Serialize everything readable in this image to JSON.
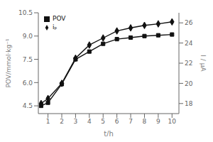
{
  "chart_data": {
    "type": "line",
    "xlabel": "t/h",
    "ylabel": "POV/mmol·kg⁻¹",
    "y2label": "I / μA",
    "x": [
      0.5,
      1,
      2,
      3,
      4,
      5,
      6,
      7,
      8,
      9,
      10
    ],
    "series": [
      {
        "name": "POV",
        "color": "#111111",
        "marker": "square",
        "values": [
          4.5,
          4.7,
          5.9,
          7.5,
          8.0,
          8.5,
          8.8,
          8.9,
          9.0,
          9.05,
          9.1
        ]
      },
      {
        "name": "iₚ",
        "color": "#111111",
        "marker": "diamond",
        "axis": "y2",
        "values": [
          18.0,
          18.5,
          20.0,
          22.5,
          23.8,
          24.5,
          25.2,
          25.5,
          25.75,
          25.9,
          26.1
        ]
      }
    ],
    "xlim": [
      0.3,
      10.5
    ],
    "xticks": [
      1,
      2,
      3,
      4,
      5,
      6,
      7,
      8,
      9,
      10
    ],
    "ylim": [
      4.0,
      10.5
    ],
    "yticks": [
      4.5,
      {
        "value": 6.0,
        "label": "6.0"
      },
      7.5,
      {
        "value": 9.0,
        "label": "9.0"
      },
      10.5
    ],
    "y2lim": [
      17.0,
      27.0
    ],
    "y2ticks": [
      18,
      20,
      22,
      24,
      26
    ],
    "legend": "upper left",
    "grid": false
  }
}
